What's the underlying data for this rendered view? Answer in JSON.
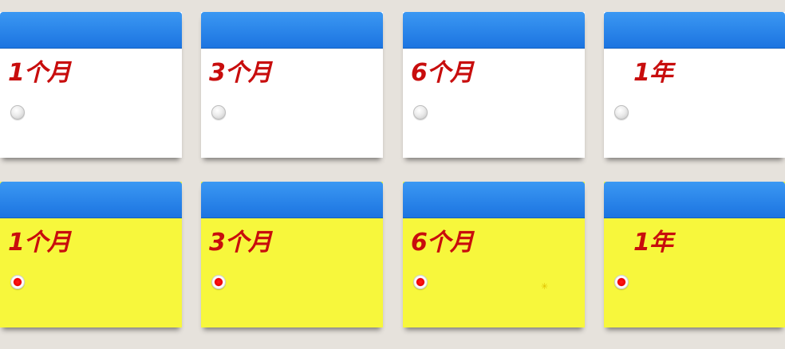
{
  "rows": [
    {
      "state": "unselected",
      "cards": [
        {
          "label": "1个月"
        },
        {
          "label": "3个月"
        },
        {
          "label": "6个月"
        },
        {
          "label": "1年"
        }
      ]
    },
    {
      "state": "selected",
      "cards": [
        {
          "label": "1个月"
        },
        {
          "label": "3个月"
        },
        {
          "label": "6个月"
        },
        {
          "label": "1年"
        }
      ]
    }
  ],
  "colors": {
    "background": "#e6e2dc",
    "header_blue": "#2a86ea",
    "card_white": "#ffffff",
    "card_selected_yellow": "#f7f73c",
    "label_red": "#c80d0d",
    "radio_selected_red": "#ee0000"
  },
  "icons": {
    "radio_unselected": "radio-unchecked-icon",
    "radio_selected": "radio-checked-icon"
  }
}
